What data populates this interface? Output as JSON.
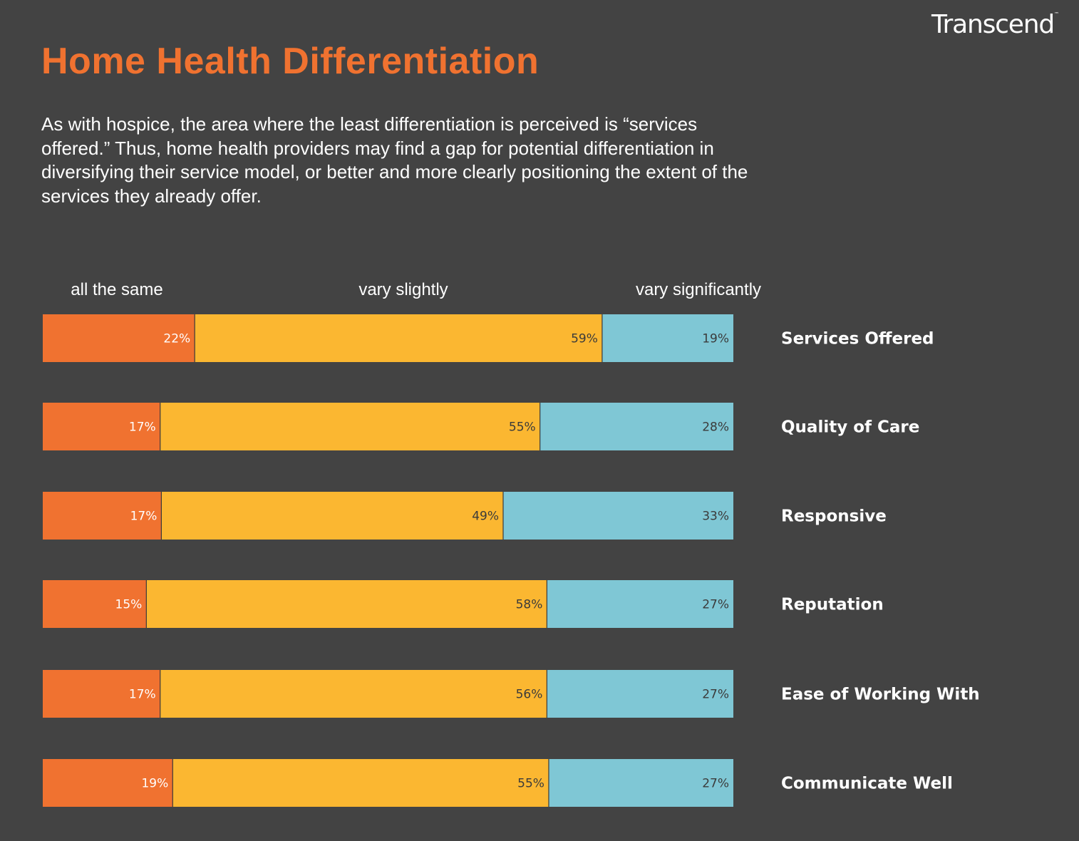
{
  "brand": {
    "name": "Transcend",
    "trademark": "™"
  },
  "title": "Home Health Differentiation",
  "subtitle": "As with hospice, the area where the least differentiation is perceived is “services offered.” Thus, home health providers may find a gap for potential differentiation in diversifying their service model, or better and more clearly positioning the extent of the services they already offer.",
  "chart_data": {
    "type": "bar",
    "orientation": "horizontal",
    "stacked": true,
    "normalized_percent": true,
    "categories": [
      "Services Offered",
      "Quality of Care",
      "Responsive",
      "Reputation",
      "Ease of Working With",
      "Communicate Well"
    ],
    "series": [
      {
        "name": "all the same",
        "color": "#f07230",
        "label_color": "#ffffff",
        "values": [
          22,
          17,
          17,
          15,
          17,
          19
        ],
        "labels": [
          "22%",
          "17%",
          "17%",
          "15%",
          "17%",
          "19%"
        ]
      },
      {
        "name": "vary slightly",
        "color": "#fbb731",
        "label_color": "#3b3b3b",
        "values": [
          59,
          55,
          49,
          58,
          56,
          55
        ],
        "labels": [
          "59%",
          "55%",
          "49%",
          "58%",
          "56%",
          "55%"
        ]
      },
      {
        "name": "vary significantly",
        "color": "#7fc7d5",
        "label_color": "#3b3b3b",
        "values": [
          19,
          28,
          33,
          27,
          27,
          27
        ],
        "labels": [
          "19%",
          "28%",
          "33%",
          "27%",
          "27%",
          "27%"
        ]
      }
    ],
    "legend_placement": "top",
    "category_label_placement": "right",
    "grid": false,
    "axes_visible": false
  },
  "colors": {
    "background": "#434343",
    "title": "#f07230",
    "text": "#ffffff"
  }
}
